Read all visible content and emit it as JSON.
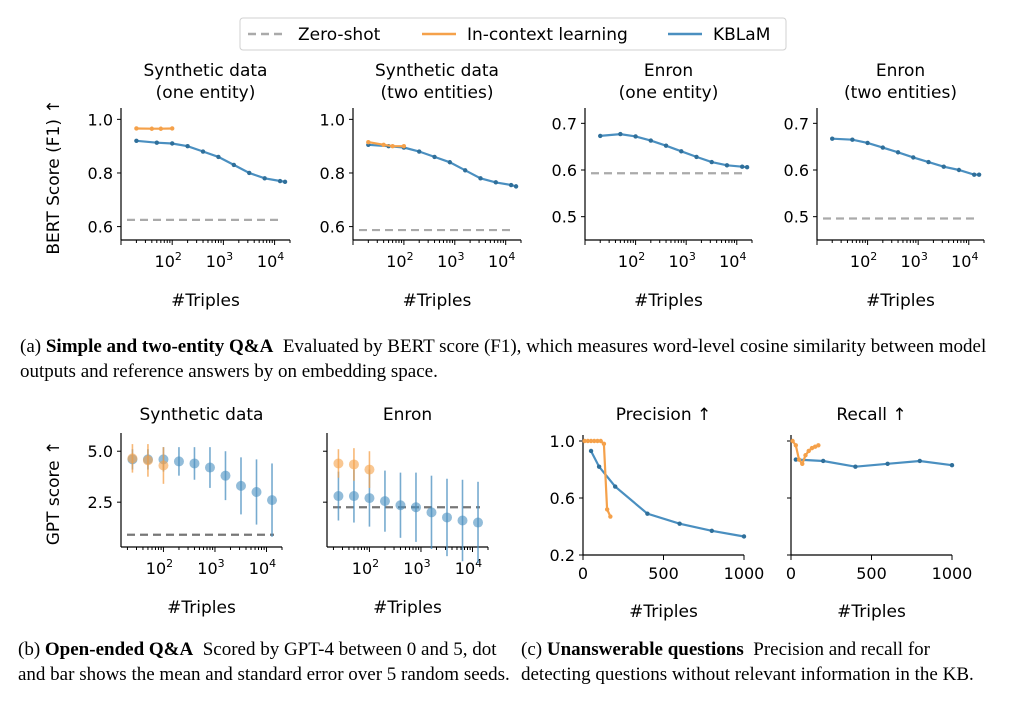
{
  "legend": {
    "items": [
      {
        "label": "Zero-shot",
        "color": "#aaaaaa",
        "dash": true
      },
      {
        "label": "In-context learning",
        "color": "#f5a14a",
        "dash": false
      },
      {
        "label": "KBLaM",
        "color": "#4a8fc0",
        "dash": false
      }
    ]
  },
  "captions": {
    "a": {
      "label": "(a)",
      "bold": "Simple and two-entity Q&A",
      "text": "Evaluated by BERT score (F1), which measures word-level cosine similarity between model outputs and reference answers by on embedding space."
    },
    "b": {
      "label": "(b)",
      "bold": "Open-ended Q&A",
      "text": "Scored by GPT-4 between 0 and 5, dot and bar shows the mean and standard error over 5 random seeds."
    },
    "c": {
      "label": "(c)",
      "bold": "Unanswerable questions",
      "text": "Precision and recall for detecting questions without relevant information in the KB."
    }
  },
  "chart_data": [
    {
      "type": "line",
      "title": "Synthetic data\n(one entity)",
      "xlabel": "#Triples",
      "ylabel": "BERT Score (F1) ↑",
      "xscale": "log",
      "xlim": [
        10,
        20000
      ],
      "ylim": [
        0.55,
        1.02
      ],
      "yticks": [
        "1.0",
        "0.8",
        "0.6"
      ],
      "xticks": [
        "10^2",
        "10^3",
        "10^4"
      ],
      "zero_shot": 0.625,
      "series": [
        {
          "name": "KBLaM",
          "color": "#4a8fc0",
          "x": [
            20,
            50,
            100,
            200,
            400,
            800,
            1600,
            3200,
            6400,
            12800,
            16000
          ],
          "y": [
            0.92,
            0.913,
            0.91,
            0.9,
            0.88,
            0.86,
            0.83,
            0.8,
            0.78,
            0.77,
            0.767
          ]
        },
        {
          "name": "In-context learning",
          "color": "#f5a14a",
          "x": [
            20,
            40,
            60,
            100
          ],
          "y": [
            0.966,
            0.965,
            0.965,
            0.966
          ]
        }
      ]
    },
    {
      "type": "line",
      "title": "Synthetic data\n(two entities)",
      "xlabel": "#Triples",
      "ylabel": "",
      "xscale": "log",
      "xlim": [
        10,
        20000
      ],
      "ylim": [
        0.55,
        1.02
      ],
      "yticks": [
        "1.0",
        "0.8",
        "0.6"
      ],
      "xticks": [
        "10^2",
        "10^3",
        "10^4"
      ],
      "zero_shot": 0.587,
      "series": [
        {
          "name": "KBLaM",
          "color": "#4a8fc0",
          "x": [
            20,
            50,
            100,
            200,
            400,
            800,
            1600,
            3200,
            6400,
            12800,
            16000
          ],
          "y": [
            0.905,
            0.9,
            0.895,
            0.88,
            0.86,
            0.84,
            0.81,
            0.78,
            0.765,
            0.755,
            0.75
          ]
        },
        {
          "name": "In-context learning",
          "color": "#f5a14a",
          "x": [
            20,
            40,
            60,
            100
          ],
          "y": [
            0.915,
            0.905,
            0.9,
            0.9
          ]
        }
      ]
    },
    {
      "type": "line",
      "title": "Enron\n(one entity)",
      "xlabel": "#Triples",
      "ylabel": "",
      "xscale": "log",
      "xlim": [
        10,
        20000
      ],
      "ylim": [
        0.45,
        0.72
      ],
      "yticks": [
        "0.7",
        "0.6",
        "0.5"
      ],
      "xticks": [
        "10^2",
        "10^3",
        "10^4"
      ],
      "zero_shot": 0.593,
      "series": [
        {
          "name": "KBLaM",
          "color": "#4a8fc0",
          "x": [
            20,
            50,
            100,
            200,
            400,
            800,
            1600,
            3200,
            6400,
            12800,
            16000
          ],
          "y": [
            0.673,
            0.677,
            0.672,
            0.663,
            0.652,
            0.64,
            0.628,
            0.617,
            0.61,
            0.607,
            0.606
          ]
        }
      ]
    },
    {
      "type": "line",
      "title": "Enron\n(two entities)",
      "xlabel": "#Triples",
      "ylabel": "",
      "xscale": "log",
      "xlim": [
        10,
        20000
      ],
      "ylim": [
        0.45,
        0.72
      ],
      "yticks": [
        "0.7",
        "0.6",
        "0.5"
      ],
      "xticks": [
        "10^2",
        "10^3",
        "10^4"
      ],
      "zero_shot": 0.496,
      "series": [
        {
          "name": "KBLaM",
          "color": "#4a8fc0",
          "x": [
            20,
            50,
            100,
            200,
            400,
            800,
            1600,
            3200,
            6400,
            12800,
            16000
          ],
          "y": [
            0.667,
            0.665,
            0.658,
            0.648,
            0.638,
            0.627,
            0.617,
            0.607,
            0.6,
            0.59,
            0.59
          ]
        }
      ]
    },
    {
      "type": "scatter",
      "title": "Synthetic data",
      "xlabel": "#Triples",
      "ylabel": "GPT score ↑",
      "xscale": "log",
      "xlim": [
        15,
        20000
      ],
      "ylim": [
        0.3,
        5.6
      ],
      "yticks": [
        "5.0",
        "2.5"
      ],
      "xticks": [
        "10^2",
        "10^3",
        "10^4"
      ],
      "zero_shot": 0.9,
      "series": [
        {
          "name": "KBLaM",
          "color": "#4a8fc0",
          "x": [
            25,
            50,
            100,
            200,
            400,
            800,
            1600,
            3200,
            6400,
            12800
          ],
          "y": [
            4.6,
            4.6,
            4.6,
            4.5,
            4.4,
            4.2,
            3.8,
            3.3,
            3.0,
            2.6
          ],
          "err": [
            0.5,
            0.5,
            0.6,
            0.7,
            0.8,
            1.0,
            1.2,
            1.4,
            1.6,
            1.8
          ]
        },
        {
          "name": "In-context learning",
          "color": "#f5a14a",
          "x": [
            25,
            50,
            100
          ],
          "y": [
            4.65,
            4.55,
            4.3
          ],
          "err": [
            0.7,
            0.8,
            0.9
          ]
        }
      ]
    },
    {
      "type": "scatter",
      "title": "Enron",
      "xlabel": "#Triples",
      "ylabel": "",
      "xscale": "log",
      "xlim": [
        15,
        20000
      ],
      "ylim": [
        0.3,
        5.6
      ],
      "yticks": [],
      "xticks": [
        "10^2",
        "10^3",
        "10^4"
      ],
      "zero_shot": 2.25,
      "series": [
        {
          "name": "KBLaM",
          "color": "#4a8fc0",
          "x": [
            25,
            50,
            100,
            200,
            400,
            800,
            1600,
            3200,
            6400,
            12800
          ],
          "y": [
            2.8,
            2.8,
            2.7,
            2.55,
            2.35,
            2.25,
            2.0,
            1.75,
            1.6,
            1.5
          ],
          "err": [
            1.2,
            1.3,
            1.4,
            1.5,
            1.6,
            1.7,
            1.8,
            1.9,
            2.0,
            2.0
          ]
        },
        {
          "name": "In-context learning",
          "color": "#f5a14a",
          "x": [
            25,
            50,
            100
          ],
          "y": [
            4.4,
            4.35,
            4.1
          ],
          "err": [
            0.7,
            0.8,
            0.9
          ]
        }
      ]
    },
    {
      "type": "line",
      "title": "Precision ↑",
      "xlabel": "#Triples",
      "ylabel": "",
      "xscale": "linear",
      "xlim": [
        0,
        1000
      ],
      "ylim": [
        0.2,
        1.0
      ],
      "yticks": [
        "1.0",
        "0.6",
        "0.2"
      ],
      "xticks": [
        "0",
        "500",
        "1000"
      ],
      "series": [
        {
          "name": "KBLaM",
          "color": "#4a8fc0",
          "x": [
            50,
            100,
            200,
            400,
            600,
            800,
            1000
          ],
          "y": [
            0.93,
            0.82,
            0.68,
            0.49,
            0.42,
            0.37,
            0.33
          ]
        },
        {
          "name": "In-context learning",
          "color": "#f5a14a",
          "x": [
            10,
            30,
            50,
            70,
            90,
            110,
            130,
            150,
            170
          ],
          "y": [
            1.0,
            1.0,
            1.0,
            1.0,
            1.0,
            1.0,
            0.98,
            0.52,
            0.47
          ]
        }
      ]
    },
    {
      "type": "line",
      "title": "Recall ↑",
      "xlabel": "#Triples",
      "ylabel": "",
      "xscale": "linear",
      "xlim": [
        0,
        1000
      ],
      "ylim": [
        0.2,
        1.0
      ],
      "yticks": [],
      "xticks": [
        "0",
        "500",
        "1000"
      ],
      "series": [
        {
          "name": "KBLaM",
          "color": "#4a8fc0",
          "x": [
            30,
            200,
            400,
            600,
            800,
            1000
          ],
          "y": [
            0.87,
            0.86,
            0.82,
            0.84,
            0.86,
            0.83
          ]
        },
        {
          "name": "In-context learning",
          "color": "#f5a14a",
          "x": [
            10,
            30,
            50,
            70,
            90,
            110,
            130,
            150,
            170
          ],
          "y": [
            1.0,
            0.97,
            0.87,
            0.84,
            0.9,
            0.93,
            0.95,
            0.96,
            0.97
          ]
        }
      ]
    }
  ]
}
